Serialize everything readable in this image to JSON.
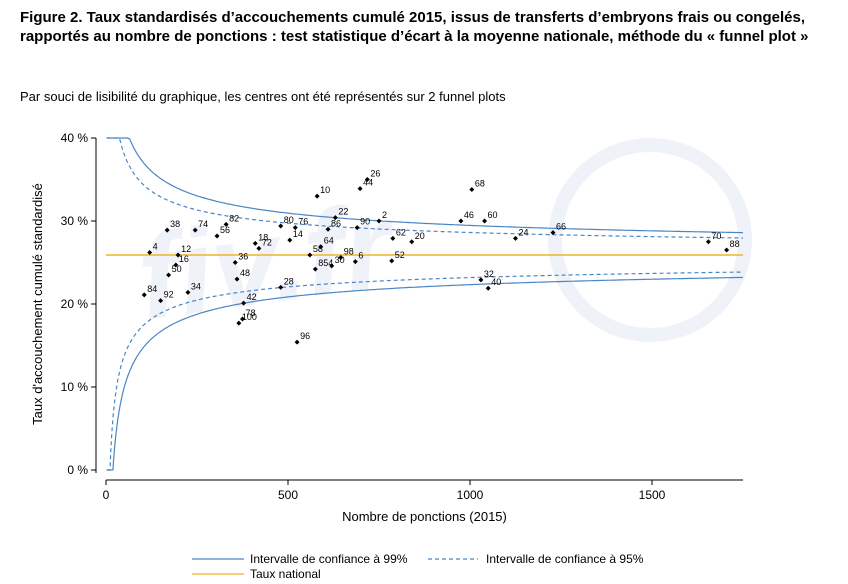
{
  "figure": {
    "title": "Figure 2. Taux standardisés d’accouchements cumulé 2015, issus de transferts d’embryons frais ou congelés, rapportés au nombre de ponctions : test statistique d’écart à la moyenne nationale, méthode du « funnel plot »",
    "subtitle": "Par souci de lisibilité du graphique, les centres ont été représentés sur 2 funnel plots"
  },
  "chart_data": {
    "type": "scatter",
    "title": "",
    "xlabel": "Nombre de ponctions (2015)",
    "ylabel": "Taux d'accouchement cumulé standardisé",
    "xlim": [
      0,
      1750
    ],
    "ylim": [
      0,
      40
    ],
    "x_ticks": [
      0,
      500,
      1000,
      1500
    ],
    "x_tick_labels": [
      "0",
      "500",
      "1000",
      "1500"
    ],
    "y_ticks": [
      0,
      10,
      20,
      30,
      40
    ],
    "y_tick_labels": [
      "0 %",
      "10 %",
      "20 %",
      "30 %",
      "40 %"
    ],
    "national_rate": 25.9,
    "points": [
      {
        "label": "4",
        "x": 120,
        "y": 26.2
      },
      {
        "label": "84",
        "x": 105,
        "y": 21.1
      },
      {
        "label": "38",
        "x": 168,
        "y": 28.9
      },
      {
        "label": "74",
        "x": 245,
        "y": 28.9
      },
      {
        "label": "12",
        "x": 198,
        "y": 25.9
      },
      {
        "label": "16",
        "x": 192,
        "y": 24.7
      },
      {
        "label": "50",
        "x": 172,
        "y": 23.5
      },
      {
        "label": "92",
        "x": 150,
        "y": 20.4
      },
      {
        "label": "34",
        "x": 225,
        "y": 21.4
      },
      {
        "label": "82",
        "x": 330,
        "y": 29.6
      },
      {
        "label": "56",
        "x": 305,
        "y": 28.2
      },
      {
        "label": "36",
        "x": 355,
        "y": 25.0
      },
      {
        "label": "48",
        "x": 360,
        "y": 23.0
      },
      {
        "label": "42",
        "x": 378,
        "y": 20.1
      },
      {
        "label": "100",
        "x": 365,
        "y": 17.7
      },
      {
        "label": "78",
        "x": 375,
        "y": 18.2
      },
      {
        "label": "18",
        "x": 410,
        "y": 27.3
      },
      {
        "label": "72",
        "x": 420,
        "y": 26.7
      },
      {
        "label": "80",
        "x": 480,
        "y": 29.4
      },
      {
        "label": "76",
        "x": 520,
        "y": 29.2
      },
      {
        "label": "14",
        "x": 505,
        "y": 27.7
      },
      {
        "label": "28",
        "x": 480,
        "y": 22.0
      },
      {
        "label": "10",
        "x": 580,
        "y": 33.0
      },
      {
        "label": "44",
        "x": 698,
        "y": 33.9
      },
      {
        "label": "26",
        "x": 718,
        "y": 35.0
      },
      {
        "label": "22",
        "x": 630,
        "y": 30.4
      },
      {
        "label": "86",
        "x": 610,
        "y": 29.0
      },
      {
        "label": "90",
        "x": 690,
        "y": 29.2
      },
      {
        "label": "2",
        "x": 750,
        "y": 30.0
      },
      {
        "label": "64",
        "x": 590,
        "y": 26.9
      },
      {
        "label": "58",
        "x": 560,
        "y": 25.9
      },
      {
        "label": "98",
        "x": 645,
        "y": 25.6
      },
      {
        "label": "6",
        "x": 685,
        "y": 25.1
      },
      {
        "label": "854",
        "x": 575,
        "y": 24.2
      },
      {
        "label": "30",
        "x": 620,
        "y": 24.6
      },
      {
        "label": "96",
        "x": 525,
        "y": 15.4
      },
      {
        "label": "62",
        "x": 788,
        "y": 27.9
      },
      {
        "label": "20",
        "x": 840,
        "y": 27.5
      },
      {
        "label": "52",
        "x": 785,
        "y": 25.2
      },
      {
        "label": "46",
        "x": 975,
        "y": 30.0
      },
      {
        "label": "68",
        "x": 1005,
        "y": 33.8
      },
      {
        "label": "60",
        "x": 1040,
        "y": 30.0
      },
      {
        "label": "32",
        "x": 1030,
        "y": 22.9
      },
      {
        "label": "40",
        "x": 1050,
        "y": 21.9
      },
      {
        "label": "24",
        "x": 1125,
        "y": 27.9
      },
      {
        "label": "66",
        "x": 1228,
        "y": 28.6
      },
      {
        "label": "70",
        "x": 1655,
        "y": 27.5
      },
      {
        "label": "88",
        "x": 1705,
        "y": 26.5
      }
    ],
    "legend": {
      "position": "bottom",
      "items": [
        {
          "label": "Intervalle de confiance à 99%",
          "style": "solid",
          "color": "#4a86c5"
        },
        {
          "label": "Intervalle de confiance à 95%",
          "style": "dashed",
          "color": "#4a86c5"
        },
        {
          "label": "Taux national",
          "style": "solid",
          "color": "#f0b429"
        }
      ]
    },
    "colors": {
      "interval": "#4a86c5",
      "national": "#f0b429",
      "points": "#000000"
    },
    "watermark": "fiv.fr"
  }
}
